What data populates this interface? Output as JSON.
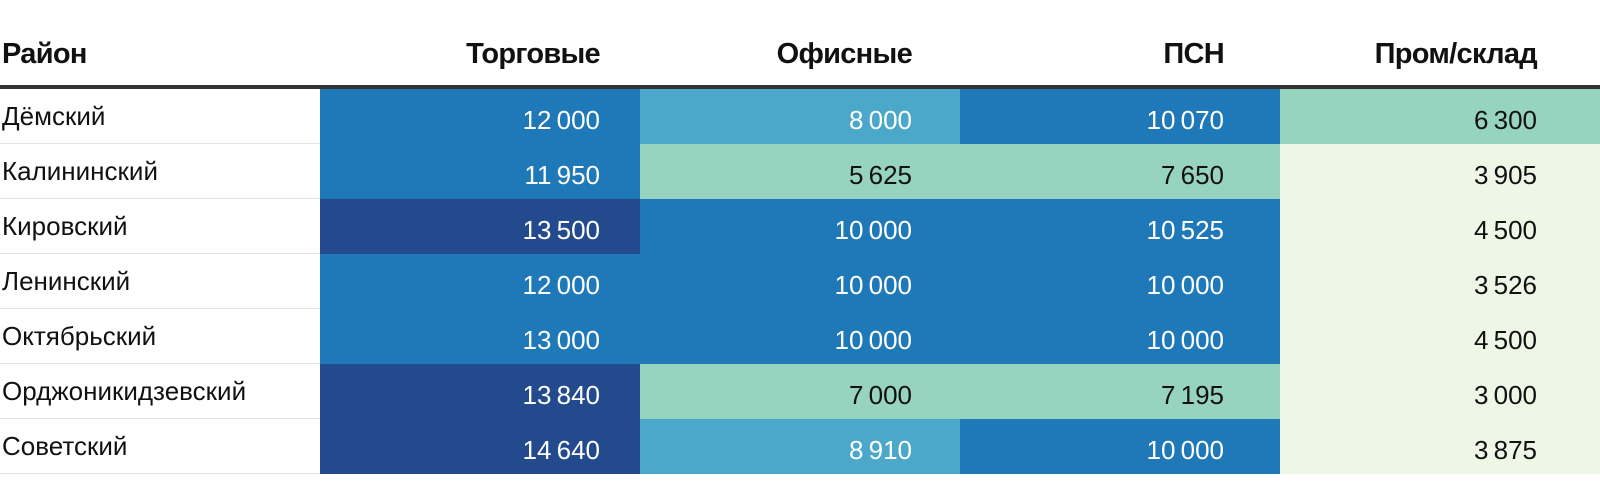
{
  "chart_data": {
    "type": "heatmap",
    "column_header": "Район",
    "columns": [
      "Торговые",
      "Офисные",
      "ПСН",
      "Пром/склад"
    ],
    "rows": [
      "Дёмский",
      "Калининский",
      "Кировский",
      "Ленинский",
      "Октябрьский",
      "Орджоникидзевский",
      "Советский"
    ],
    "values": [
      [
        12000,
        8000,
        10070,
        6300
      ],
      [
        11950,
        5625,
        7650,
        3905
      ],
      [
        13500,
        10000,
        10525,
        4500
      ],
      [
        12000,
        10000,
        10000,
        3526
      ],
      [
        13000,
        10000,
        10000,
        4500
      ],
      [
        13840,
        7000,
        7195,
        3000
      ],
      [
        14640,
        8910,
        10000,
        3875
      ]
    ],
    "color_scale": [
      {
        "max": 5000,
        "color": "#eef7e6",
        "text": "#111111"
      },
      {
        "max": 7800,
        "color": "#97d4c0",
        "text": "#111111"
      },
      {
        "max": 9500,
        "color": "#4ba8cb",
        "text": "#ffffff"
      },
      {
        "max": 13000,
        "color": "#1f78b8",
        "text": "#ffffff"
      },
      {
        "max": 99999,
        "color": "#234a8c",
        "text": "#ffffff"
      }
    ]
  }
}
